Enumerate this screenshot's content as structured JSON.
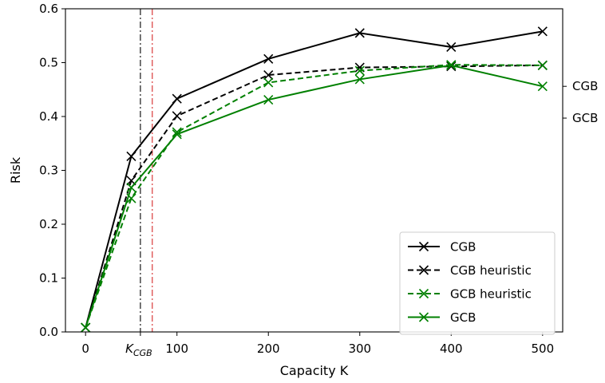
{
  "chart_data": {
    "type": "line",
    "title": "",
    "xlabel": "Capacity K",
    "ylabel": "Risk",
    "xlim": [
      -22,
      522
    ],
    "ylim": [
      0.0,
      0.6
    ],
    "x_ticks": [
      0,
      100,
      200,
      300,
      400,
      500
    ],
    "y_ticks": [
      0.0,
      0.1,
      0.2,
      0.3,
      0.4,
      0.5,
      0.6
    ],
    "grid": false,
    "legend_position": "bottom-right",
    "x": [
      0,
      50,
      100,
      200,
      300,
      400,
      500
    ],
    "series": [
      {
        "name": "CGB",
        "values": [
          0.008,
          0.326,
          0.433,
          0.507,
          0.555,
          0.529,
          0.558
        ],
        "color": "#000000",
        "dash": "solid",
        "marker": "x"
      },
      {
        "name": "CGB heuristic",
        "values": [
          0.008,
          0.281,
          0.401,
          0.477,
          0.491,
          0.493,
          0.495
        ],
        "color": "#000000",
        "dash": "dashed",
        "marker": "x"
      },
      {
        "name": "GCB heuristic",
        "values": [
          0.008,
          0.248,
          0.371,
          0.463,
          0.485,
          0.496,
          0.495
        ],
        "color": "#008000",
        "dash": "dashed",
        "marker": "x"
      },
      {
        "name": "GCB",
        "values": [
          0.008,
          0.268,
          0.367,
          0.431,
          0.469,
          0.495,
          0.456
        ],
        "color": "#008000",
        "dash": "solid",
        "marker": "x"
      }
    ],
    "vertical_lines": [
      {
        "x": 60,
        "color": "#000000",
        "style": "dashdot",
        "label": "K",
        "label_sub": "CGB"
      },
      {
        "x": 73,
        "color": "#d62728",
        "style": "dashdot"
      }
    ],
    "right_axis_labels": [
      {
        "y": 0.456,
        "text": "CGB"
      },
      {
        "y": 0.397,
        "text": "GCB"
      }
    ]
  }
}
